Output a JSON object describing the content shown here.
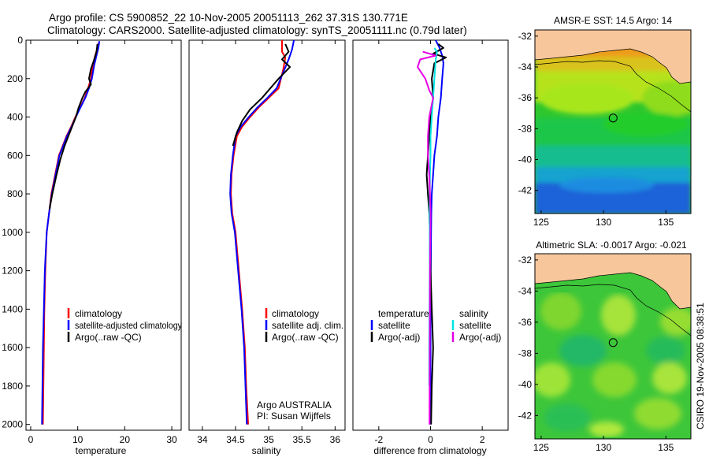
{
  "header": {
    "line1": "Argo profile: CS 5900852_22 10-Nov-2005 20051113_262 37.31S 130.771E",
    "line2": "Climatology: CARS2000. Satellite-adjusted climatology: synTS_20051111.nc (0.79d later)"
  },
  "credits": {
    "agency": "Argo AUSTRALIA",
    "pi": "PI: Susan Wijffels",
    "stamp": "CSIRO 19-Nov-2005 08:38:51"
  },
  "colors": {
    "climatology": "#ff0000",
    "satellite": "#0000ff",
    "argo": "#000000",
    "sal_satellite": "#00e5e5",
    "sal_argo": "#e600e6",
    "land": "#f7c79b"
  },
  "chart_data": [
    {
      "type": "line",
      "xlabel": "temperature",
      "xlim": [
        -1,
        32
      ],
      "ylim": [
        2030,
        0
      ],
      "xticks": [
        "0",
        "10",
        "20",
        "30"
      ],
      "yticks": [
        "0",
        "200",
        "400",
        "600",
        "800",
        "1000",
        "1200",
        "1400",
        "1600",
        "1800",
        "2000"
      ],
      "legend": [
        "climatology",
        "satellite-adjusted climatology",
        "Argo(..raw -QC)"
      ],
      "series": [
        {
          "name": "climatology",
          "color": "#ff0000",
          "x": [
            14.4,
            14.2,
            13.7,
            13.2,
            12.8,
            12.2,
            11.5,
            10.5,
            9.5,
            8.6,
            7.6,
            6.8,
            6.0,
            5.2,
            4.4,
            3.9,
            3.4,
            3.1,
            2.9,
            2.8,
            2.7,
            2.6
          ],
          "y": [
            15,
            40,
            80,
            130,
            200,
            250,
            300,
            350,
            400,
            450,
            500,
            550,
            600,
            700,
            800,
            900,
            1000,
            1200,
            1400,
            1600,
            1800,
            2000
          ]
        },
        {
          "name": "satellite-adjusted climatology",
          "color": "#0000ff",
          "x": [
            14.6,
            14.4,
            14.0,
            13.5,
            13.0,
            12.4,
            11.6,
            10.6,
            9.6,
            8.7,
            7.7,
            6.9,
            6.1,
            5.3,
            4.5,
            3.9,
            3.4,
            3.0,
            2.8,
            2.6,
            2.5,
            2.4
          ],
          "y": [
            5,
            40,
            80,
            130,
            200,
            250,
            300,
            350,
            400,
            450,
            500,
            550,
            600,
            700,
            800,
            900,
            1000,
            1200,
            1400,
            1600,
            1800,
            2000
          ]
        },
        {
          "name": "Argo(..raw -QC)",
          "color": "#000000",
          "x": [
            14.2,
            14.0,
            13.5,
            12.8,
            12.4,
            12.8,
            11.6,
            11.0,
            10.2,
            9.6,
            8.8,
            8.0,
            7.2,
            6.3,
            5.5,
            4.6,
            4.0
          ],
          "y": [
            20,
            60,
            100,
            150,
            200,
            230,
            270,
            300,
            350,
            400,
            450,
            500,
            550,
            620,
            700,
            800,
            880
          ]
        }
      ]
    },
    {
      "type": "line",
      "xlabel": "salinity",
      "xlim": [
        33.8,
        36.15
      ],
      "ylim": [
        2030,
        0
      ],
      "xticks": [
        "34",
        "34.5",
        "35",
        "35.5",
        "36"
      ],
      "yticks": [],
      "legend": [
        "climatology",
        "satellite adj. clim.",
        "Argo(..raw -QC)"
      ],
      "series": [
        {
          "name": "climatology",
          "color": "#ff0000",
          "x": [
            35.2,
            35.2,
            35.25,
            35.22,
            35.15,
            35.0,
            34.85,
            34.72,
            34.6,
            34.52,
            34.47,
            34.44,
            34.43,
            34.45,
            34.5,
            34.55,
            34.6,
            34.64,
            34.66,
            34.69
          ],
          "y": [
            0,
            60,
            90,
            150,
            250,
            300,
            350,
            400,
            450,
            500,
            600,
            700,
            800,
            900,
            1000,
            1200,
            1400,
            1600,
            1800,
            2000
          ]
        },
        {
          "name": "satellite adj. clim.",
          "color": "#0000ff",
          "x": [
            35.38,
            35.35,
            35.3,
            35.24,
            35.12,
            34.98,
            34.83,
            34.7,
            34.58,
            34.5,
            34.46,
            34.43,
            34.42,
            34.44,
            34.49,
            34.54,
            34.59,
            34.63,
            34.65,
            34.67
          ],
          "y": [
            0,
            50,
            100,
            150,
            250,
            300,
            350,
            400,
            450,
            500,
            600,
            700,
            800,
            900,
            1000,
            1200,
            1400,
            1600,
            1800,
            2000
          ]
        },
        {
          "name": "Argo(..raw -QC)",
          "color": "#000000",
          "x": [
            35.25,
            35.3,
            35.2,
            35.32,
            35.15,
            35.0,
            34.9,
            34.72,
            34.6,
            34.52,
            34.46
          ],
          "y": [
            20,
            60,
            100,
            140,
            200,
            260,
            300,
            360,
            420,
            480,
            550
          ]
        }
      ]
    },
    {
      "type": "line",
      "xlabel": "difference from climatology",
      "xlim": [
        -3,
        3
      ],
      "ylim": [
        2030,
        0
      ],
      "xticks": [
        "-2",
        "0",
        "2"
      ],
      "yticks": [],
      "legend_temperature_title": "temperature",
      "legend_salinity_title": "salinity",
      "legend": [
        "satellite",
        "Argo(-adj)",
        "satellite",
        "Argo(-adj)"
      ],
      "series": [
        {
          "name": "satellite",
          "group": "temperature",
          "color": "#0000ff",
          "x": [
            0.2,
            0.35,
            0.45,
            0.5,
            0.45,
            0.4,
            0.3,
            0.25,
            0.15,
            0.1,
            0.05,
            0.03,
            0.02,
            0.01,
            0.0,
            0.0,
            0.0,
            -0.02
          ],
          "y": [
            0,
            40,
            80,
            120,
            200,
            300,
            400,
            500,
            600,
            700,
            800,
            900,
            1000,
            1200,
            1400,
            1600,
            1800,
            2000
          ]
        },
        {
          "name": "Argo(-adj)",
          "group": "temperature",
          "color": "#000000",
          "x": [
            0.3,
            0.5,
            0.1,
            0.6,
            0.15,
            0.05,
            0.1,
            0.0,
            -0.05,
            -0.1,
            -0.15,
            -0.1,
            -0.05,
            -0.02,
            0.0,
            0.05,
            0.1,
            0.05,
            0.02
          ],
          "y": [
            20,
            40,
            70,
            90,
            120,
            200,
            300,
            400,
            500,
            600,
            700,
            800,
            900,
            1000,
            1200,
            1400,
            1600,
            1800,
            2000
          ]
        },
        {
          "name": "satellite",
          "group": "salinity",
          "color": "#00e5e5",
          "x": [
            0.15,
            0.25,
            0.2,
            0.15,
            0.1,
            0.05,
            0.0,
            0.0,
            -0.02,
            -0.03,
            -0.04,
            -0.03,
            -0.03,
            -0.04,
            -0.05,
            -0.05
          ],
          "y": [
            40,
            60,
            100,
            200,
            300,
            400,
            500,
            600,
            700,
            800,
            900,
            1000,
            1200,
            1400,
            1600,
            1800
          ]
        },
        {
          "name": "Argo(-adj)",
          "group": "salinity",
          "color": "#e600e6",
          "x": [
            -0.3,
            0.2,
            -0.4,
            -0.5,
            -0.2,
            -0.05,
            0.1,
            -0.05,
            -0.1,
            -0.1,
            -0.05,
            -0.02,
            0.0,
            -0.02,
            -0.03,
            -0.04
          ],
          "y": [
            60,
            80,
            100,
            140,
            200,
            260,
            300,
            400,
            500,
            600,
            700,
            800,
            900,
            1200,
            1600,
            2000
          ]
        }
      ]
    },
    {
      "type": "heatmap",
      "title": "AMSR-E SST: 14.5 Argo: 14",
      "xlim": [
        124.5,
        137
      ],
      "ylim": [
        -43.5,
        -31.6
      ],
      "xticks": [
        "125",
        "130",
        "135"
      ],
      "yticks": [
        "-32",
        "-34",
        "-36",
        "-38",
        "-40",
        "-42"
      ],
      "marker": {
        "lon": 130.771,
        "lat": -37.31
      }
    },
    {
      "type": "heatmap",
      "title": "Altimetric SLA: -0.0017 Argo: -0.021",
      "xlim": [
        124.5,
        137
      ],
      "ylim": [
        -43.5,
        -31.6
      ],
      "xticks": [
        "125",
        "130",
        "135"
      ],
      "yticks": [
        "-32",
        "-34",
        "-36",
        "-38",
        "-40",
        "-42"
      ],
      "marker": {
        "lon": 130.771,
        "lat": -37.31
      }
    }
  ]
}
